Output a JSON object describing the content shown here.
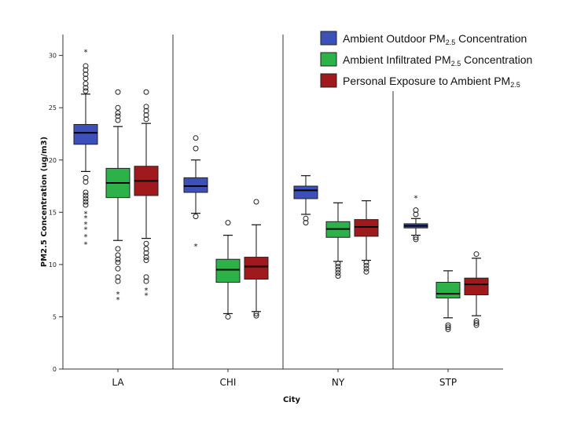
{
  "chart_data": {
    "type": "boxplot",
    "title": "",
    "xlabel": "City",
    "ylabel": "PM2.5 Concentration (ug/m3)",
    "ylim": [
      0,
      32
    ],
    "yticks": [
      0,
      5,
      10,
      15,
      20,
      25,
      30
    ],
    "categories": [
      "LA",
      "CHI",
      "NY",
      "STP"
    ],
    "series": [
      {
        "name": "Ambient Outdoor PM2.5 Concentration",
        "legend_main": "Ambient Outdoor PM",
        "legend_sub": "2.5",
        "legend_tail": " Concentration",
        "color": "#3b50b8",
        "boxes": [
          {
            "whisker_low": 18.9,
            "q1": 21.5,
            "median": 22.6,
            "q3": 23.4,
            "whisker_high": 26.3,
            "outliers_circle": [
              26.6,
              26.9,
              27.3,
              27.8,
              28.2,
              28.6,
              29.0,
              18.3,
              17.9,
              16.9,
              16.6,
              16.3,
              16.0,
              15.7
            ],
            "outliers_star": [
              30.4,
              14.9,
              14.5,
              13.9,
              13.4,
              12.7,
              12.0
            ]
          },
          {
            "whisker_low": 14.9,
            "q1": 16.9,
            "median": 17.5,
            "q3": 18.3,
            "whisker_high": 20.0,
            "outliers_circle": [
              14.6,
              21.1,
              22.1
            ],
            "outliers_star": [
              11.8
            ]
          },
          {
            "whisker_low": 14.8,
            "q1": 16.3,
            "median": 17.1,
            "q3": 17.5,
            "whisker_high": 18.5,
            "outliers_circle": [
              14.4,
              14.0
            ],
            "outliers_star": []
          },
          {
            "whisker_low": 12.8,
            "q1": 13.5,
            "median": 13.7,
            "q3": 13.9,
            "whisker_high": 14.4,
            "outliers_circle": [
              14.8,
              15.2,
              12.6,
              12.4
            ],
            "outliers_star": [
              16.4
            ]
          }
        ]
      },
      {
        "name": "Ambient Infiltrated PM2.5 Concentration",
        "legend_main": "Ambient Infiltrated PM",
        "legend_sub": "2.5",
        "legend_tail": " Concentration",
        "color": "#2db24a",
        "boxes": [
          {
            "whisker_low": 12.3,
            "q1": 16.4,
            "median": 17.8,
            "q3": 19.2,
            "whisker_high": 23.2,
            "outliers_circle": [
              23.8,
              24.2,
              24.5,
              25.0,
              26.5,
              11.5,
              10.9,
              10.5,
              10.2,
              9.6,
              8.8,
              8.4
            ],
            "outliers_star": [
              7.2,
              6.7
            ]
          },
          {
            "whisker_low": 5.3,
            "q1": 8.3,
            "median": 9.5,
            "q3": 10.5,
            "whisker_high": 12.8,
            "outliers_circle": [
              14.0,
              5.0
            ],
            "outliers_star": []
          },
          {
            "whisker_low": 10.3,
            "q1": 12.6,
            "median": 13.4,
            "q3": 14.1,
            "whisker_high": 15.9,
            "outliers_circle": [
              10.1,
              9.8,
              9.5,
              9.2,
              8.9
            ],
            "outliers_star": []
          },
          {
            "whisker_low": 4.9,
            "q1": 6.8,
            "median": 7.2,
            "q3": 8.3,
            "whisker_high": 9.4,
            "outliers_circle": [
              4.2,
              4.0,
              3.8
            ],
            "outliers_star": []
          }
        ]
      },
      {
        "name": "Personal Exposure to Ambient PM2.5",
        "legend_main": "Personal Exposure to Ambient PM",
        "legend_sub": "2.5",
        "legend_tail": "",
        "color": "#a01a1d",
        "boxes": [
          {
            "whisker_low": 12.5,
            "q1": 16.6,
            "median": 18.0,
            "q3": 19.4,
            "whisker_high": 23.5,
            "outliers_circle": [
              23.9,
              24.3,
              24.7,
              25.1,
              26.5,
              12.0,
              11.5,
              11.1,
              10.7,
              10.4,
              8.8,
              8.4
            ],
            "outliers_star": [
              7.6,
              7.1
            ]
          },
          {
            "whisker_low": 5.5,
            "q1": 8.6,
            "median": 9.8,
            "q3": 10.7,
            "whisker_high": 13.8,
            "outliers_circle": [
              16.0,
              5.3,
              5.1
            ],
            "outliers_star": []
          },
          {
            "whisker_low": 10.4,
            "q1": 12.7,
            "median": 13.6,
            "q3": 14.3,
            "whisker_high": 16.1,
            "outliers_circle": [
              10.2,
              9.9,
              9.6,
              9.3
            ],
            "outliers_star": []
          },
          {
            "whisker_low": 5.1,
            "q1": 7.1,
            "median": 8.1,
            "q3": 8.7,
            "whisker_high": 10.6,
            "outliers_circle": [
              11.0,
              4.6,
              4.4,
              4.2
            ],
            "outliers_star": []
          }
        ]
      }
    ]
  }
}
